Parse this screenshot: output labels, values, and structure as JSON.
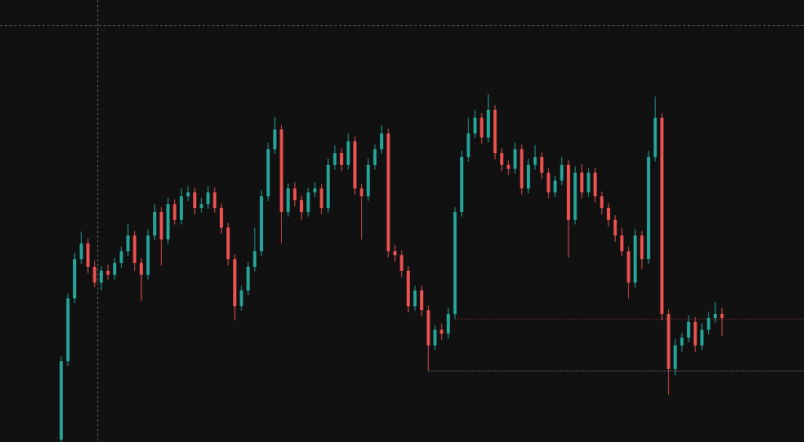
{
  "chart_data": {
    "type": "candlestick",
    "ylim": [
      0,
      563
    ],
    "up_color": "#26a69a",
    "down_color": "#ef5350",
    "open": [
      3,
      103,
      183,
      233,
      253,
      223,
      203,
      218,
      213,
      228,
      243,
      263,
      228,
      213,
      263,
      293,
      258,
      303,
      283,
      313,
      318,
      298,
      303,
      318,
      298,
      273,
      233,
      173,
      193,
      223,
      243,
      313,
      373,
      398,
      293,
      323,
      308,
      293,
      318,
      323,
      298,
      353,
      368,
      353,
      383,
      323,
      313,
      353,
      373,
      393,
      243,
      238,
      218,
      173,
      193,
      168,
      123,
      143,
      138,
      163,
      293,
      363,
      393,
      413,
      388,
      423,
      368,
      353,
      348,
      373,
      323,
      353,
      363,
      343,
      318,
      333,
      353,
      283,
      343,
      318,
      343,
      313,
      298,
      283,
      263,
      243,
      203,
      263,
      233,
      363,
      413,
      163,
      93,
      123,
      133,
      153,
      123,
      143,
      158,
      163
    ],
    "high": [
      109,
      189,
      241,
      268,
      259,
      231,
      224,
      226,
      234,
      249,
      278,
      269,
      234,
      271,
      303,
      299,
      311,
      309,
      323,
      326,
      324,
      311,
      326,
      324,
      304,
      279,
      239,
      199,
      229,
      273,
      321,
      381,
      414,
      404,
      329,
      331,
      314,
      324,
      331,
      329,
      361,
      378,
      374,
      393,
      389,
      329,
      361,
      379,
      403,
      399,
      251,
      244,
      224,
      199,
      199,
      174,
      149,
      151,
      171,
      299,
      371,
      413,
      423,
      419,
      443,
      429,
      374,
      359,
      381,
      379,
      361,
      378,
      369,
      349,
      339,
      363,
      359,
      351,
      354,
      349,
      349,
      319,
      304,
      289,
      273,
      249,
      271,
      269,
      371,
      440,
      419,
      169,
      131,
      139,
      161,
      159,
      151,
      166,
      178,
      171
    ],
    "low": [
      0,
      97,
      177,
      227,
      215,
      197,
      193,
      207,
      207,
      222,
      237,
      218,
      180,
      207,
      257,
      225,
      252,
      277,
      277,
      307,
      290,
      292,
      297,
      292,
      265,
      225,
      155,
      167,
      187,
      217,
      237,
      307,
      367,
      253,
      287,
      300,
      283,
      287,
      312,
      290,
      292,
      347,
      345,
      347,
      315,
      258,
      307,
      347,
      367,
      235,
      230,
      210,
      165,
      167,
      160,
      91,
      117,
      130,
      132,
      157,
      287,
      357,
      387,
      380,
      382,
      360,
      345,
      340,
      342,
      315,
      317,
      347,
      335,
      310,
      312,
      327,
      235,
      277,
      310,
      312,
      305,
      290,
      275,
      255,
      237,
      183,
      197,
      220,
      227,
      357,
      155,
      60,
      85,
      115,
      127,
      115,
      117,
      137,
      152,
      135
    ],
    "close": [
      103,
      183,
      233,
      253,
      223,
      203,
      218,
      213,
      228,
      243,
      263,
      228,
      213,
      263,
      293,
      258,
      303,
      283,
      313,
      318,
      298,
      303,
      318,
      298,
      273,
      233,
      173,
      193,
      223,
      243,
      313,
      373,
      398,
      293,
      323,
      308,
      293,
      318,
      323,
      298,
      353,
      368,
      353,
      383,
      323,
      313,
      353,
      373,
      393,
      243,
      238,
      218,
      173,
      193,
      168,
      123,
      143,
      138,
      163,
      293,
      363,
      393,
      413,
      388,
      423,
      368,
      353,
      348,
      373,
      323,
      353,
      363,
      343,
      318,
      333,
      353,
      283,
      343,
      318,
      343,
      313,
      298,
      283,
      263,
      243,
      203,
      263,
      233,
      363,
      413,
      163,
      93,
      123,
      133,
      153,
      123,
      143,
      158,
      163,
      158
    ],
    "levels": [
      {
        "value": 157,
        "color": "#6e2a2a"
      },
      {
        "value": 91,
        "color": "#6a6a6a"
      }
    ]
  }
}
